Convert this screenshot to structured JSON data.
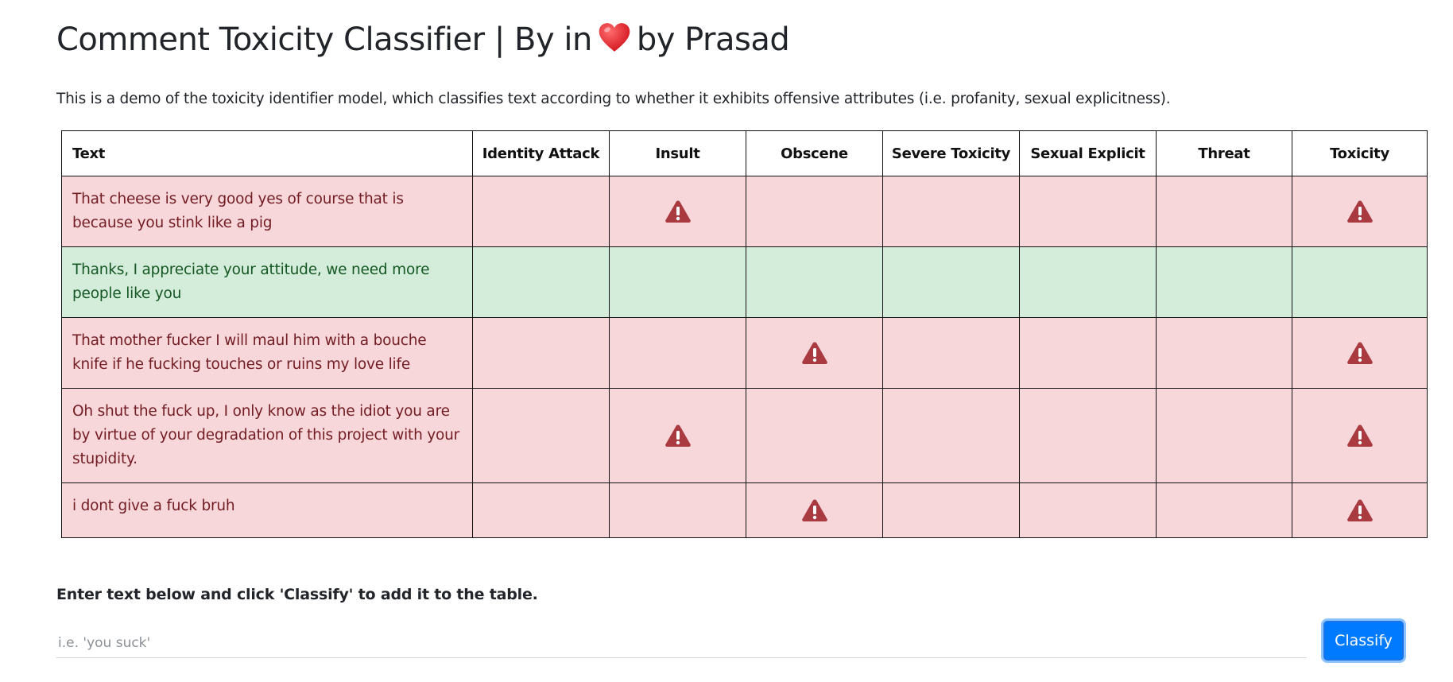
{
  "header": {
    "title_prefix": "Comment Toxicity Classifier | By in",
    "title_suffix": "by Prasad",
    "heart_icon": "heart-icon",
    "heart_color": "#e0262f"
  },
  "description": "This is a demo of the toxicity identifier model, which classifies text according to whether it exhibits offensive attributes (i.e. profanity, sexual explicitness).",
  "table": {
    "columns": [
      "Text",
      "Identity Attack",
      "Insult",
      "Obscene",
      "Severe Toxicity",
      "Sexual Explicit",
      "Threat",
      "Toxicity"
    ],
    "flag_icon": "warning-triangle-icon",
    "colors": {
      "toxic_bg": "#f8d7da",
      "toxic_text": "#721c24",
      "clean_bg": "#d4edda",
      "clean_text": "#155724",
      "flag": "#a83a40"
    },
    "rows": [
      {
        "text": "That cheese is very good yes of course that is because you stink like a pig",
        "flags": [
          false,
          true,
          false,
          false,
          false,
          false,
          true
        ]
      },
      {
        "text": "Thanks, I appreciate your attitude, we need more people like you",
        "flags": [
          false,
          false,
          false,
          false,
          false,
          false,
          false
        ]
      },
      {
        "text": "That mother fucker I will maul him with a bouche knife if he fucking touches or ruins my love life",
        "flags": [
          false,
          false,
          true,
          false,
          false,
          false,
          true
        ]
      },
      {
        "text": "Oh shut the fuck up, I only know as the idiot you are by virtue of your degradation of this project with your stupidity.",
        "flags": [
          false,
          true,
          false,
          false,
          false,
          false,
          true
        ]
      },
      {
        "text": "i dont give a fuck bruh",
        "flags": [
          false,
          false,
          true,
          false,
          false,
          false,
          true
        ]
      }
    ]
  },
  "form": {
    "instruction": "Enter text below and click 'Classify' to add it to the table.",
    "input_placeholder": "i.e. 'you suck'",
    "input_value": "",
    "button_label": "Classify",
    "button_color": "#007bff"
  }
}
